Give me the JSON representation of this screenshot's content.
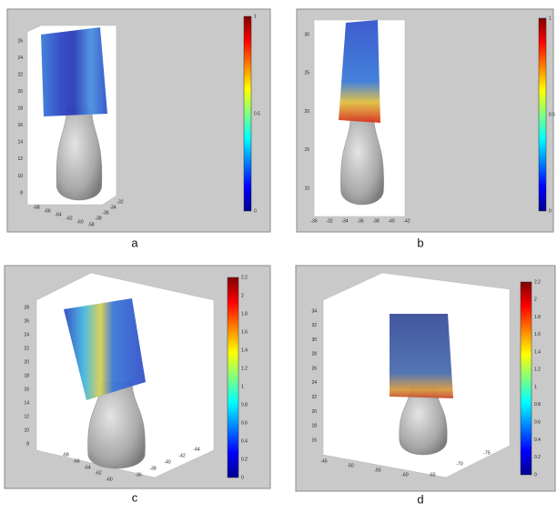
{
  "panels": [
    {
      "label": "a",
      "y_ticks": [
        "26",
        "24",
        "22",
        "20",
        "18",
        "16",
        "14",
        "12",
        "10",
        "8"
      ],
      "x_ticks": [
        "-68",
        "-66",
        "-64",
        "-62",
        "-60",
        "-58",
        "-38",
        "-36",
        "-34",
        "-32"
      ],
      "colorbar_ticks": [
        "1",
        "0.5",
        "0"
      ]
    },
    {
      "label": "b",
      "y_ticks": [
        "30",
        "25",
        "20",
        "15",
        "10"
      ],
      "x_ticks": [
        "-36",
        "-32",
        "-34",
        "-36",
        "-38",
        "-40",
        "-42"
      ],
      "colorbar_ticks": [
        "1",
        "0.5",
        "0"
      ]
    },
    {
      "label": "c",
      "y_ticks": [
        "28",
        "26",
        "24",
        "22",
        "20",
        "18",
        "16",
        "14",
        "12",
        "10",
        "8"
      ],
      "x_ticks": [
        "-68",
        "-66",
        "-64",
        "-62",
        "-60",
        "-36",
        "-38",
        "-40",
        "-42",
        "-44"
      ],
      "colorbar_ticks": [
        "2.2",
        "2",
        "1.8",
        "1.6",
        "1.4",
        "1.2",
        "1",
        "0.8",
        "0.6",
        "0.4",
        "0.2",
        "0"
      ]
    },
    {
      "label": "d",
      "y_ticks": [
        "34",
        "32",
        "30",
        "28",
        "26",
        "24",
        "22",
        "20",
        "18",
        "16"
      ],
      "x_ticks": [
        "-45",
        "-50",
        "-55",
        "-60",
        "-65",
        "-70",
        "-75"
      ],
      "colorbar_ticks": [
        "2.2",
        "2",
        "1.8",
        "1.6",
        "1.4",
        "1.2",
        "1",
        "0.8",
        "0.6",
        "0.4",
        "0.2",
        "0"
      ]
    }
  ]
}
